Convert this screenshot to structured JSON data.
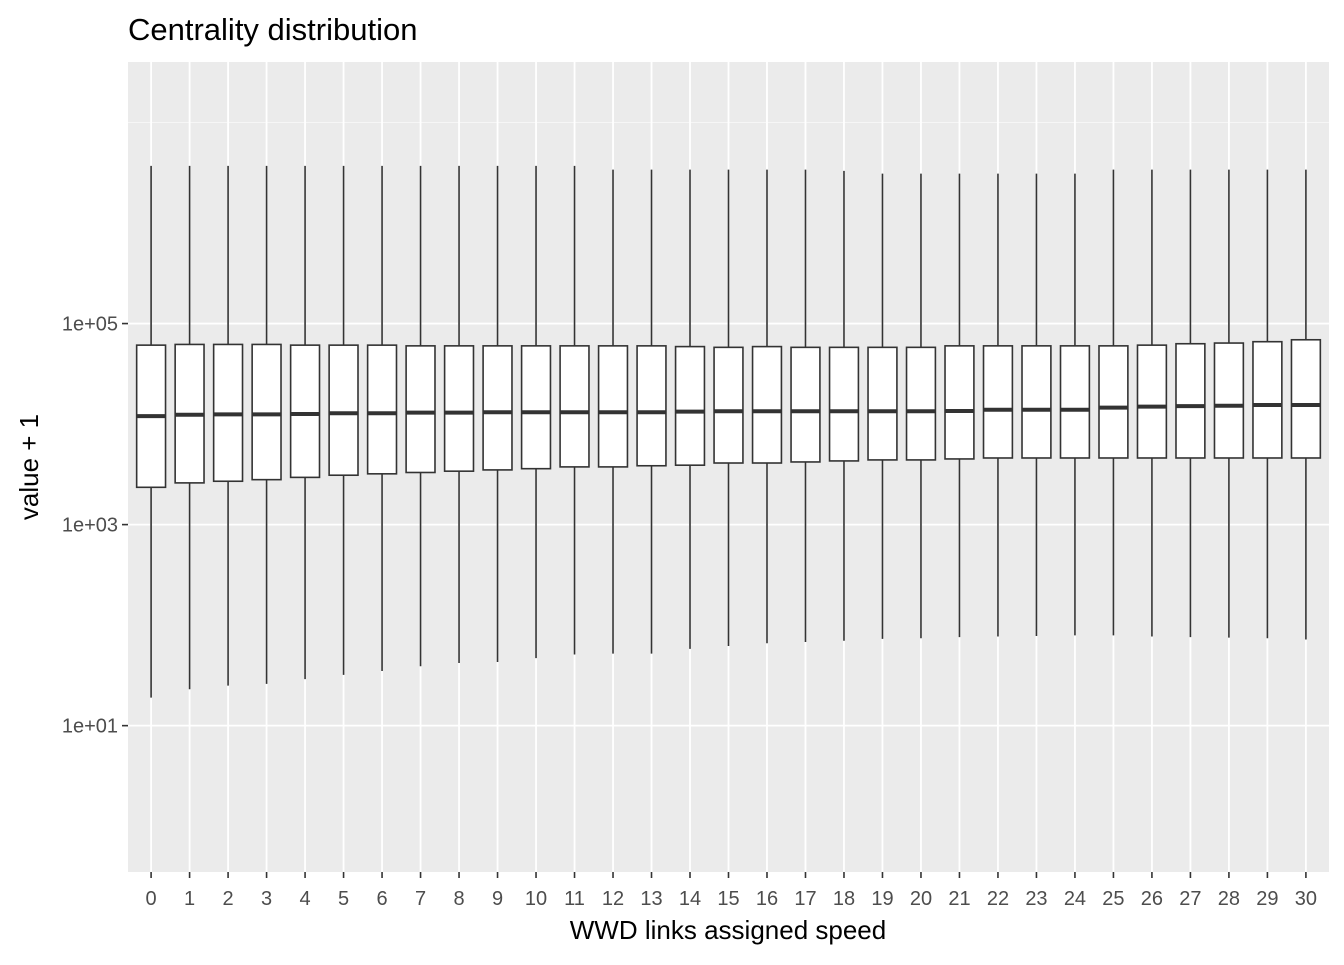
{
  "chart_data": {
    "type": "boxplot",
    "title": "Centrality distribution",
    "xlabel": "WWD links assigned speed",
    "ylabel": "value + 1",
    "y_scale": "log10",
    "ylim": [
      0.35,
      40000000
    ],
    "y_ticks": [
      {
        "value": 10,
        "label": "1e+01"
      },
      {
        "value": 1000,
        "label": "1e+03"
      },
      {
        "value": 100000,
        "label": "1e+05"
      }
    ],
    "grid": true,
    "legend": "none",
    "categories": [
      "0",
      "1",
      "2",
      "3",
      "4",
      "5",
      "6",
      "7",
      "8",
      "9",
      "10",
      "11",
      "12",
      "13",
      "14",
      "15",
      "16",
      "17",
      "18",
      "19",
      "20",
      "21",
      "22",
      "23",
      "24",
      "25",
      "26",
      "27",
      "28",
      "29",
      "30"
    ],
    "boxes": [
      {
        "min": 19,
        "q1": 2350,
        "median": 12000,
        "q3": 61000,
        "max": 3700000
      },
      {
        "min": 23,
        "q1": 2600,
        "median": 12400,
        "q3": 62000,
        "max": 3700000
      },
      {
        "min": 25,
        "q1": 2700,
        "median": 12500,
        "q3": 62000,
        "max": 3700000
      },
      {
        "min": 26,
        "q1": 2800,
        "median": 12500,
        "q3": 62000,
        "max": 3700000
      },
      {
        "min": 29,
        "q1": 2950,
        "median": 12600,
        "q3": 61000,
        "max": 3700000
      },
      {
        "min": 32,
        "q1": 3100,
        "median": 12800,
        "q3": 61000,
        "max": 3700000
      },
      {
        "min": 35,
        "q1": 3200,
        "median": 12800,
        "q3": 61000,
        "max": 3700000
      },
      {
        "min": 39,
        "q1": 3300,
        "median": 13000,
        "q3": 60000,
        "max": 3700000
      },
      {
        "min": 42,
        "q1": 3400,
        "median": 13000,
        "q3": 60000,
        "max": 3700000
      },
      {
        "min": 43,
        "q1": 3500,
        "median": 13100,
        "q3": 60000,
        "max": 3700000
      },
      {
        "min": 47,
        "q1": 3600,
        "median": 13100,
        "q3": 60000,
        "max": 3700000
      },
      {
        "min": 51,
        "q1": 3750,
        "median": 13100,
        "q3": 60000,
        "max": 3700000
      },
      {
        "min": 52,
        "q1": 3750,
        "median": 13100,
        "q3": 60000,
        "max": 3400000
      },
      {
        "min": 52,
        "q1": 3850,
        "median": 13100,
        "q3": 60000,
        "max": 3400000
      },
      {
        "min": 58,
        "q1": 3900,
        "median": 13300,
        "q3": 59000,
        "max": 3400000
      },
      {
        "min": 62,
        "q1": 4100,
        "median": 13400,
        "q3": 58000,
        "max": 3400000
      },
      {
        "min": 66,
        "q1": 4100,
        "median": 13400,
        "q3": 59000,
        "max": 3400000
      },
      {
        "min": 68,
        "q1": 4200,
        "median": 13400,
        "q3": 58000,
        "max": 3400000
      },
      {
        "min": 70,
        "q1": 4300,
        "median": 13400,
        "q3": 58000,
        "max": 3300000
      },
      {
        "min": 73,
        "q1": 4400,
        "median": 13400,
        "q3": 58000,
        "max": 3100000
      },
      {
        "min": 74,
        "q1": 4400,
        "median": 13400,
        "q3": 58000,
        "max": 3100000
      },
      {
        "min": 76,
        "q1": 4500,
        "median": 13500,
        "q3": 60000,
        "max": 3100000
      },
      {
        "min": 77,
        "q1": 4600,
        "median": 13900,
        "q3": 60000,
        "max": 3100000
      },
      {
        "min": 78,
        "q1": 4600,
        "median": 13900,
        "q3": 60000,
        "max": 3100000
      },
      {
        "min": 79,
        "q1": 4600,
        "median": 13900,
        "q3": 60000,
        "max": 3100000
      },
      {
        "min": 79,
        "q1": 4600,
        "median": 14600,
        "q3": 60000,
        "max": 3400000
      },
      {
        "min": 77,
        "q1": 4600,
        "median": 14900,
        "q3": 61000,
        "max": 3400000
      },
      {
        "min": 76,
        "q1": 4600,
        "median": 15100,
        "q3": 63000,
        "max": 3400000
      },
      {
        "min": 75,
        "q1": 4600,
        "median": 15200,
        "q3": 64000,
        "max": 3400000
      },
      {
        "min": 74,
        "q1": 4600,
        "median": 15500,
        "q3": 66000,
        "max": 3400000
      },
      {
        "min": 72,
        "q1": 4600,
        "median": 15500,
        "q3": 69000,
        "max": 3400000
      }
    ],
    "colors": {
      "panel_background": "#ebebeb",
      "grid_major": "#ffffff",
      "box_fill": "#ffffff",
      "box_line": "#333333",
      "tick_label": "#4d4d4d",
      "text": "#000000"
    }
  }
}
